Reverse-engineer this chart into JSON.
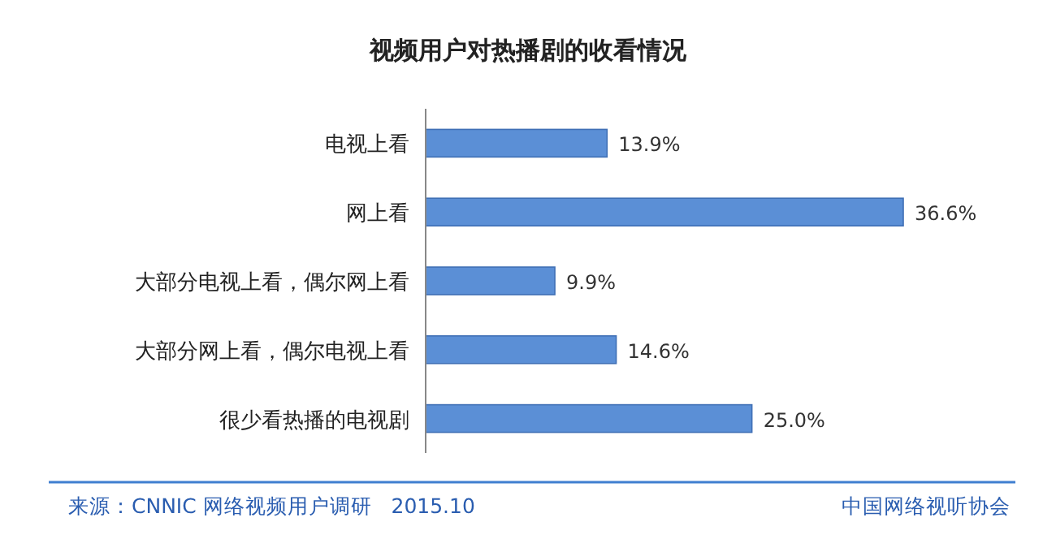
{
  "chart_data": {
    "type": "bar",
    "orientation": "horizontal",
    "title": "视频用户对热播剧的收看情况",
    "categories": [
      "电视上看",
      "网上看",
      "大部分电视上看，偶尔网上看",
      "大部分网上看，偶尔电视上看",
      "很少看热播的电视剧"
    ],
    "values": [
      13.9,
      36.6,
      9.9,
      14.6,
      25.0
    ],
    "value_labels": [
      "13.9%",
      "36.6%",
      "9.9%",
      "14.6%",
      "25.0%"
    ],
    "color": "#5b8fd6",
    "annotations": [
      "来源：CNNIC 网络视频用户调研   2015.10",
      "中国网络视听协会"
    ]
  }
}
